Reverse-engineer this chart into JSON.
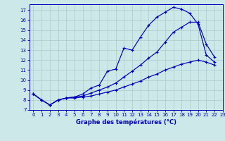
{
  "title": "Graphe des températures (°C)",
  "bg_color": "#cce8e8",
  "grid_color": "#aacccc",
  "line_color": "#0000bb",
  "xlim": [
    -0.5,
    23
  ],
  "ylim": [
    7,
    17.6
  ],
  "xticks": [
    0,
    1,
    2,
    3,
    4,
    5,
    6,
    7,
    8,
    9,
    10,
    11,
    12,
    13,
    14,
    15,
    16,
    17,
    18,
    19,
    20,
    21,
    22,
    23
  ],
  "yticks": [
    7,
    8,
    9,
    10,
    11,
    12,
    13,
    14,
    15,
    16,
    17
  ],
  "series1_x": [
    0,
    1,
    2,
    3,
    4,
    5,
    6,
    7,
    8,
    9,
    10,
    11,
    12,
    13,
    14,
    15,
    16,
    17,
    18,
    19,
    20,
    21,
    22
  ],
  "series1_y": [
    8.6,
    8.0,
    7.5,
    8.0,
    8.2,
    8.3,
    8.6,
    9.2,
    9.5,
    10.9,
    11.1,
    13.2,
    13.0,
    14.3,
    15.5,
    16.3,
    16.8,
    17.3,
    17.1,
    16.7,
    15.6,
    12.5,
    11.8
  ],
  "series2_x": [
    0,
    1,
    2,
    3,
    4,
    5,
    6,
    7,
    8,
    9,
    10,
    11,
    12,
    13,
    14,
    15,
    16,
    17,
    18,
    19,
    20,
    21,
    22
  ],
  "series2_y": [
    8.6,
    8.0,
    7.5,
    8.0,
    8.2,
    8.3,
    8.4,
    8.7,
    9.0,
    9.3,
    9.7,
    10.3,
    10.9,
    11.5,
    12.2,
    12.8,
    13.8,
    14.8,
    15.3,
    15.8,
    15.8,
    13.6,
    12.3
  ],
  "series3_x": [
    0,
    1,
    2,
    3,
    4,
    5,
    6,
    7,
    8,
    9,
    10,
    11,
    12,
    13,
    14,
    15,
    16,
    17,
    18,
    19,
    20,
    21,
    22
  ],
  "series3_y": [
    8.6,
    8.0,
    7.5,
    8.0,
    8.2,
    8.2,
    8.3,
    8.4,
    8.6,
    8.8,
    9.0,
    9.3,
    9.6,
    9.9,
    10.3,
    10.6,
    11.0,
    11.3,
    11.6,
    11.8,
    12.0,
    11.8,
    11.5
  ]
}
